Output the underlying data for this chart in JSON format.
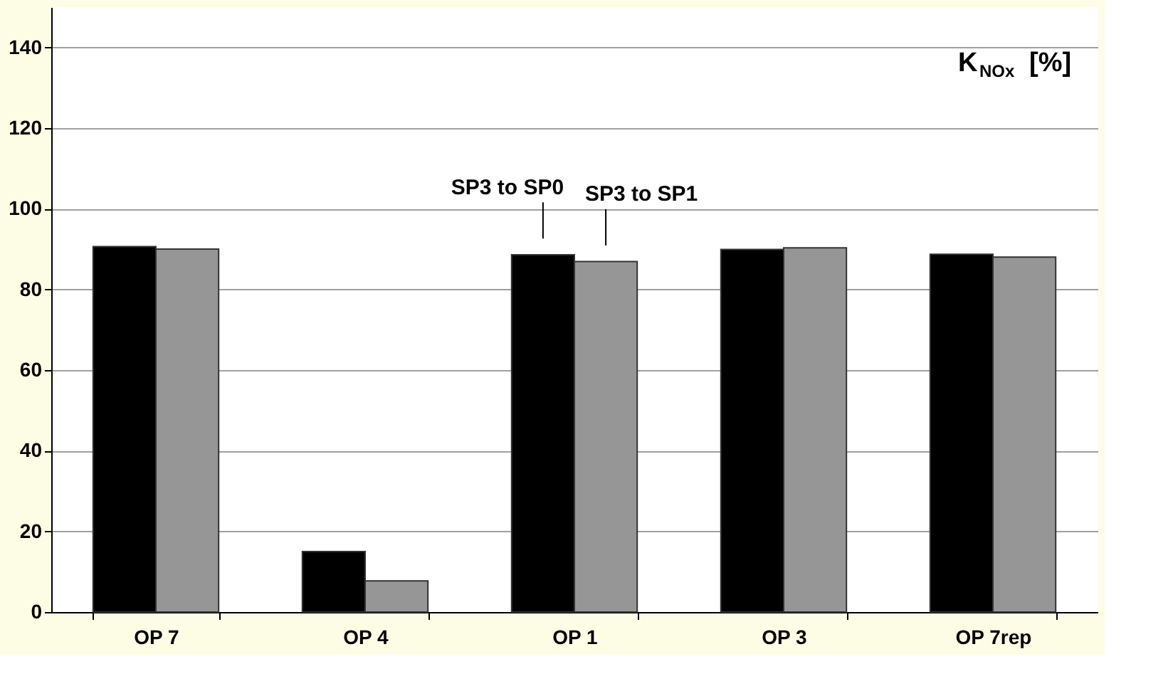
{
  "chart_data": {
    "type": "bar",
    "ylabel": "K$_{NOx}$ [%]",
    "categories": [
      "OP 7",
      "OP 4",
      "OP 1",
      "OP 3",
      "OP 7rep"
    ],
    "series": [
      {
        "name": "SP3 to SP0",
        "color": "#000000",
        "values": [
          90.6,
          15.0,
          88.6,
          89.9,
          88.7
        ]
      },
      {
        "name": "SP3 to SP1",
        "color": "#969696",
        "values": [
          90.0,
          7.7,
          86.9,
          90.3,
          88.0
        ]
      }
    ],
    "ylim": [
      0,
      150
    ],
    "yticks": [
      0,
      20,
      40,
      60,
      80,
      100,
      120,
      140
    ],
    "grid": "y",
    "legend": false
  }
}
